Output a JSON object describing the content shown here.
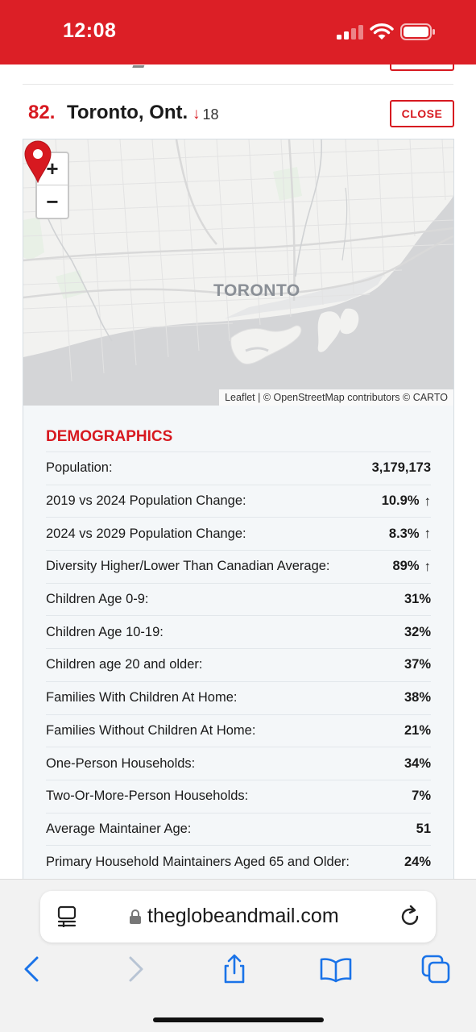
{
  "status_bar": {
    "time": "12:08"
  },
  "entry": {
    "rank": "82.",
    "city": "Toronto, Ont.",
    "change_arrow": "↓",
    "change_value": "18",
    "close_label": "CLOSE"
  },
  "map": {
    "place_label": "TORONTO",
    "zoom_in": "+",
    "zoom_out": "−",
    "attribution": "Leaflet | © OpenStreetMap contributors © CARTO"
  },
  "demographics": {
    "title": "DEMOGRAPHICS",
    "rows": [
      {
        "label": "Population:",
        "value": "3,179,173",
        "trend": ""
      },
      {
        "label": "2019 vs 2024 Population Change:",
        "value": "10.9%",
        "trend": "↑"
      },
      {
        "label": "2024 vs 2029 Population Change:",
        "value": "8.3%",
        "trend": "↑"
      },
      {
        "label": "Diversity Higher/Lower Than Canadian Average:",
        "value": "89%",
        "trend": "↑"
      },
      {
        "label": "Children Age 0-9:",
        "value": "31%",
        "trend": ""
      },
      {
        "label": "Children Age 10-19:",
        "value": "32%",
        "trend": ""
      },
      {
        "label": "Children age 20 and older:",
        "value": "37%",
        "trend": ""
      },
      {
        "label": "Families With Children At Home:",
        "value": "38%",
        "trend": ""
      },
      {
        "label": "Families Without Children At Home:",
        "value": "21%",
        "trend": ""
      },
      {
        "label": "One-Person Households:",
        "value": "34%",
        "trend": ""
      },
      {
        "label": "Two-Or-More-Person Households:",
        "value": "7%",
        "trend": ""
      },
      {
        "label": "Average Maintainer Age:",
        "value": "51",
        "trend": ""
      },
      {
        "label": "Primary Household Maintainers Aged 65 and Older:",
        "value": "24%",
        "trend": ""
      }
    ]
  },
  "browser": {
    "url": "theglobeandmail.com"
  },
  "colors": {
    "brand_red": "#d71920",
    "status_bar": "#dc1f26",
    "ios_blue": "#1a73e8"
  },
  "icons": [
    "signal-icon",
    "wifi-icon",
    "battery-icon",
    "map-pin-icon",
    "tab-overview-icon",
    "lock-icon",
    "reload-icon",
    "back-icon",
    "forward-icon",
    "share-icon",
    "bookmarks-icon",
    "tabs-icon"
  ]
}
